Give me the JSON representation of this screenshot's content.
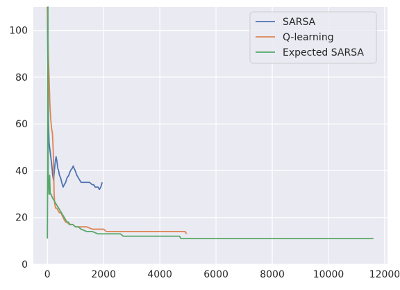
{
  "chart_data": {
    "type": "line",
    "title": "",
    "xlabel": "",
    "ylabel": "",
    "xlim": [
      -500,
      12100
    ],
    "ylim": [
      0,
      110
    ],
    "x_ticks": [
      0,
      2000,
      4000,
      6000,
      8000,
      10000,
      12000
    ],
    "y_ticks": [
      0,
      20,
      40,
      60,
      80,
      100
    ],
    "grid": true,
    "legend_position": "top-right",
    "colors": {
      "background": "#eaeaf2",
      "grid": "#ffffff"
    },
    "series": [
      {
        "name": "SARSA",
        "color": "#4c72b0",
        "points": [
          [
            0,
            110
          ],
          [
            20,
            80
          ],
          [
            40,
            60
          ],
          [
            60,
            52
          ],
          [
            80,
            50
          ],
          [
            100,
            48
          ],
          [
            130,
            45
          ],
          [
            160,
            42
          ],
          [
            190,
            38
          ],
          [
            220,
            36
          ],
          [
            250,
            40
          ],
          [
            280,
            44
          ],
          [
            310,
            46
          ],
          [
            340,
            44
          ],
          [
            370,
            41
          ],
          [
            400,
            40
          ],
          [
            430,
            38
          ],
          [
            470,
            37
          ],
          [
            510,
            35
          ],
          [
            560,
            33
          ],
          [
            600,
            34
          ],
          [
            650,
            35
          ],
          [
            700,
            37
          ],
          [
            760,
            38
          ],
          [
            820,
            40
          ],
          [
            880,
            41
          ],
          [
            920,
            42
          ],
          [
            950,
            41
          ],
          [
            990,
            40
          ],
          [
            1050,
            38
          ],
          [
            1100,
            37
          ],
          [
            1150,
            36
          ],
          [
            1200,
            35
          ],
          [
            1300,
            35
          ],
          [
            1400,
            35
          ],
          [
            1500,
            35
          ],
          [
            1600,
            34
          ],
          [
            1650,
            34
          ],
          [
            1700,
            33
          ],
          [
            1800,
            33
          ],
          [
            1850,
            32
          ],
          [
            1900,
            33
          ],
          [
            1950,
            35
          ]
        ]
      },
      {
        "name": "Q-learning",
        "color": "#dd8452",
        "points": [
          [
            0,
            110
          ],
          [
            30,
            90
          ],
          [
            60,
            80
          ],
          [
            90,
            68
          ],
          [
            120,
            62
          ],
          [
            150,
            58
          ],
          [
            180,
            56
          ],
          [
            210,
            48
          ],
          [
            240,
            30
          ],
          [
            260,
            26
          ],
          [
            290,
            24
          ],
          [
            330,
            24
          ],
          [
            380,
            23
          ],
          [
            430,
            22
          ],
          [
            480,
            22
          ],
          [
            520,
            21
          ],
          [
            560,
            20
          ],
          [
            600,
            19
          ],
          [
            650,
            18
          ],
          [
            700,
            18
          ],
          [
            780,
            17
          ],
          [
            850,
            17
          ],
          [
            900,
            17
          ],
          [
            1000,
            16
          ],
          [
            1200,
            16
          ],
          [
            1400,
            16
          ],
          [
            1600,
            15
          ],
          [
            1800,
            15
          ],
          [
            2000,
            15
          ],
          [
            2100,
            14
          ],
          [
            2500,
            14
          ],
          [
            3000,
            14
          ],
          [
            3500,
            14
          ],
          [
            4000,
            14
          ],
          [
            4500,
            14
          ],
          [
            4900,
            14
          ],
          [
            4950,
            13
          ]
        ]
      },
      {
        "name": "Expected SARSA",
        "color": "#55a868",
        "points": [
          [
            0,
            11
          ],
          [
            10,
            40
          ],
          [
            20,
            110
          ],
          [
            30,
            32
          ],
          [
            45,
            35
          ],
          [
            60,
            30
          ],
          [
            80,
            38
          ],
          [
            100,
            30
          ],
          [
            130,
            30
          ],
          [
            160,
            29
          ],
          [
            200,
            28
          ],
          [
            250,
            27
          ],
          [
            300,
            26
          ],
          [
            350,
            25
          ],
          [
            400,
            24
          ],
          [
            450,
            23
          ],
          [
            500,
            22
          ],
          [
            550,
            21
          ],
          [
            600,
            20
          ],
          [
            650,
            19
          ],
          [
            700,
            18
          ],
          [
            750,
            18
          ],
          [
            800,
            17
          ],
          [
            900,
            17
          ],
          [
            1000,
            16
          ],
          [
            1100,
            16
          ],
          [
            1200,
            15
          ],
          [
            1400,
            14
          ],
          [
            1600,
            14
          ],
          [
            1800,
            13
          ],
          [
            2000,
            13
          ],
          [
            2200,
            13
          ],
          [
            2400,
            13
          ],
          [
            2600,
            13
          ],
          [
            2700,
            12
          ],
          [
            3000,
            12
          ],
          [
            3500,
            12
          ],
          [
            4000,
            12
          ],
          [
            4400,
            12
          ],
          [
            4700,
            12
          ],
          [
            4750,
            11
          ],
          [
            5000,
            11
          ],
          [
            6000,
            11
          ],
          [
            7000,
            11
          ],
          [
            8000,
            11
          ],
          [
            9000,
            11
          ],
          [
            10000,
            11
          ],
          [
            11000,
            11
          ],
          [
            11600,
            11
          ]
        ]
      }
    ]
  }
}
